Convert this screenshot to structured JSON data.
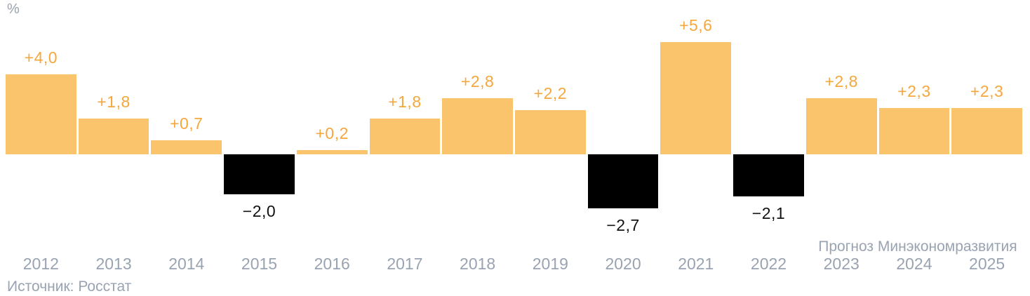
{
  "chart_data": {
    "type": "bar",
    "title": "",
    "unit": "%",
    "categories": [
      "2012",
      "2013",
      "2014",
      "2015",
      "2016",
      "2017",
      "2018",
      "2019",
      "2020",
      "2021",
      "2022",
      "2023",
      "2024",
      "2025"
    ],
    "values": [
      4.0,
      1.8,
      0.7,
      -2.0,
      0.2,
      1.8,
      2.8,
      2.2,
      -2.7,
      5.6,
      -2.1,
      2.8,
      2.3,
      2.3
    ],
    "value_labels": [
      "+4,0",
      "+1,8",
      "+0,7",
      "−2,0",
      "+0,2",
      "+1,8",
      "+2,8",
      "+2,2",
      "−2,7",
      "+5,6",
      "−2,1",
      "+2,8",
      "+2,3",
      "+2,3"
    ],
    "forecast_note": "Прогноз Минэкономразвития",
    "forecast_years": [
      "2023",
      "2024",
      "2025"
    ],
    "source": "Источник: Росстат",
    "ylim": [
      -3.2,
      6.5
    ],
    "grid": false,
    "legend": false,
    "colors": {
      "positive_bar": "#FAC46D",
      "negative_bar": "#000000",
      "positive_label": "#F5A73E",
      "negative_label": "#111111",
      "axis_text": "#99A3B1"
    }
  }
}
